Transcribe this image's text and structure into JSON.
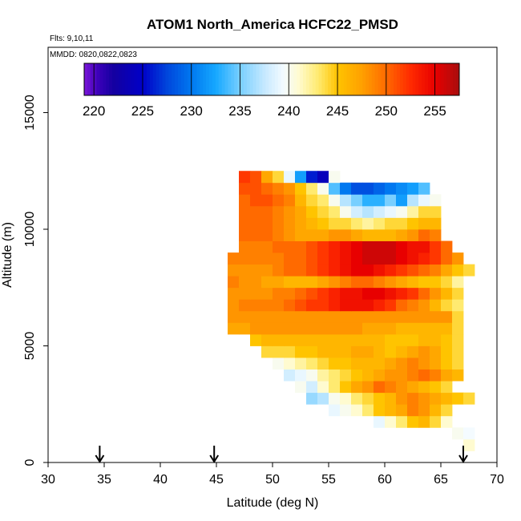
{
  "chart_data": {
    "type": "heatmap",
    "title": "ATOM1 North_America HCFC22_PMSD",
    "subtitle_flights": "Flts: 9,10,11",
    "subtitle_dates": "MMDD: 0820,0822,0823",
    "xlabel": "Latitude (deg N)",
    "ylabel": "Altitude (m)",
    "xlim": [
      30,
      70
    ],
    "ylim": [
      0,
      17800
    ],
    "x_ticks": [
      "30",
      "35",
      "40",
      "45",
      "50",
      "55",
      "60",
      "65",
      "70"
    ],
    "y_ticks": [
      "0",
      "5000",
      "10000",
      "15000"
    ],
    "colorbar": {
      "range": [
        219,
        257.5
      ],
      "ticks": [
        "220",
        "225",
        "230",
        "235",
        "240",
        "245",
        "250",
        "255"
      ],
      "stops": [
        {
          "v": 219.0,
          "c": "#7b16d8"
        },
        {
          "v": 220.5,
          "c": "#3a00b8"
        },
        {
          "v": 222.0,
          "c": "#1400a0"
        },
        {
          "v": 225.0,
          "c": "#0000c8"
        },
        {
          "v": 227.5,
          "c": "#0046dc"
        },
        {
          "v": 230.0,
          "c": "#0078f0"
        },
        {
          "v": 232.5,
          "c": "#16a8ff"
        },
        {
          "v": 235.0,
          "c": "#78cfff"
        },
        {
          "v": 237.5,
          "c": "#c6e9ff"
        },
        {
          "v": 239.5,
          "c": "#f4fbff"
        },
        {
          "v": 241.0,
          "c": "#fffbd0"
        },
        {
          "v": 243.0,
          "c": "#ffea70"
        },
        {
          "v": 245.0,
          "c": "#ffc400"
        },
        {
          "v": 247.5,
          "c": "#ffa000"
        },
        {
          "v": 250.0,
          "c": "#ff6a00"
        },
        {
          "v": 252.5,
          "c": "#ff2a00"
        },
        {
          "v": 255.0,
          "c": "#e80000"
        },
        {
          "v": 257.5,
          "c": "#a80e0e"
        }
      ]
    },
    "flight_arrows_lat": [
      34.6,
      44.8,
      67.0
    ],
    "grid_origin_lat": 45,
    "grid_lat_step": 1,
    "grid_origin_alt": 0,
    "grid_alt_step": 500,
    "rows": [
      {
        "r": 1,
        "c0": 67,
        "v": [
          241
        ]
      },
      {
        "r": 2,
        "c0": 66,
        "v": [
          240,
          239.5
        ]
      },
      {
        "r": 3,
        "c0": 59,
        "v": [
          239,
          241,
          243,
          245,
          246,
          244,
          241
        ]
      },
      {
        "r": 4,
        "c0": 55,
        "v": [
          239,
          240,
          241,
          243,
          245,
          246,
          247,
          249,
          248,
          246,
          244
        ]
      },
      {
        "r": 5,
        "c0": 53,
        "v": [
          236,
          237,
          240,
          241,
          243,
          244,
          245,
          246,
          248,
          249,
          248,
          247,
          246,
          245,
          244
        ]
      },
      {
        "r": 6,
        "c0": 52,
        "v": [
          240,
          238,
          241,
          243,
          245,
          247,
          248,
          250,
          249,
          248,
          247,
          246,
          245,
          244
        ]
      },
      {
        "r": 7,
        "c0": 51,
        "v": [
          238,
          239,
          240,
          242,
          243,
          244,
          245,
          246,
          247,
          248,
          248,
          249,
          250,
          249,
          247,
          246
        ]
      },
      {
        "r": 8,
        "c0": 50,
        "v": [
          240,
          241,
          242,
          243,
          244,
          245,
          245,
          246,
          246,
          246,
          247,
          248,
          249,
          248,
          247,
          245,
          244
        ]
      },
      {
        "r": 9,
        "c0": 49,
        "v": [
          244,
          244,
          244,
          245,
          245,
          246,
          246,
          246,
          247,
          247,
          246,
          245,
          246,
          247,
          248,
          247,
          245,
          244
        ]
      },
      {
        "r": 10,
        "c0": 48,
        "v": [
          245,
          246,
          246,
          246,
          246,
          246,
          246,
          246,
          246,
          246,
          246,
          246,
          245,
          245,
          245,
          246,
          246,
          245,
          244
        ]
      },
      {
        "r": 11,
        "c0": 46,
        "v": [
          247,
          247,
          248,
          248,
          248,
          248,
          248,
          248,
          248,
          248,
          248,
          248,
          247,
          247,
          247,
          246,
          246,
          246,
          246,
          246,
          244
        ]
      },
      {
        "r": 12,
        "c0": 46,
        "v": [
          248,
          248,
          248,
          248,
          248,
          248,
          248,
          248,
          248,
          248,
          248,
          248,
          248,
          248,
          248,
          248,
          248,
          248,
          248,
          248,
          244
        ]
      },
      {
        "r": 13,
        "c0": 46,
        "v": [
          248,
          249,
          249,
          249,
          249,
          250,
          251,
          252,
          252,
          253,
          254,
          254,
          254,
          253,
          252,
          250,
          249,
          248,
          246,
          244,
          243
        ]
      },
      {
        "r": 14,
        "c0": 46,
        "v": [
          248,
          248,
          248,
          248,
          249,
          249,
          250,
          251,
          252,
          253,
          254,
          254,
          255,
          255,
          254,
          253,
          252,
          250,
          248,
          246,
          244
        ]
      },
      {
        "r": 15,
        "c0": 46,
        "v": [
          249,
          248,
          248,
          247,
          247,
          246,
          246,
          246,
          247,
          248,
          249,
          250,
          250,
          249,
          248,
          247,
          246,
          245,
          245,
          244,
          242
        ]
      },
      {
        "r": 16,
        "c0": 46,
        "v": [
          248,
          248,
          248,
          248,
          249,
          250,
          250,
          251,
          252,
          253,
          254,
          255,
          255,
          254,
          253,
          252,
          251,
          250,
          249,
          247,
          245,
          244
        ]
      },
      {
        "r": 17,
        "c0": 46,
        "v": [
          249,
          249,
          249,
          249,
          249,
          250,
          250,
          251,
          252,
          253,
          254,
          255,
          256,
          256,
          256,
          255,
          254,
          253,
          252,
          250,
          248
        ]
      },
      {
        "r": 18,
        "c0": 47,
        "v": [
          249,
          249,
          249,
          250,
          250,
          250,
          251,
          252,
          253,
          254,
          255,
          256,
          256,
          256,
          255,
          254,
          254,
          252,
          250
        ]
      },
      {
        "r": 19,
        "c0": 47,
        "v": [
          250,
          250,
          250,
          249,
          248,
          247,
          247,
          247,
          248,
          248,
          247,
          246,
          246,
          246,
          247,
          248,
          250,
          249
        ]
      },
      {
        "r": 20,
        "c0": 47,
        "v": [
          250,
          250,
          250,
          249,
          248,
          247,
          246,
          245,
          244,
          244,
          243,
          242,
          243,
          244,
          244,
          245,
          246,
          246
        ]
      },
      {
        "r": 21,
        "c0": 47,
        "v": [
          250,
          250,
          250,
          249,
          248,
          247,
          245,
          244,
          243,
          240,
          238,
          237,
          238,
          239,
          240,
          242,
          244,
          244
        ]
      },
      {
        "r": 22,
        "c0": 47,
        "v": [
          250,
          251,
          251,
          250,
          249,
          246,
          244,
          243,
          240,
          237,
          235,
          233,
          233,
          235,
          232,
          237,
          239,
          240
        ]
      },
      {
        "r": 23,
        "c0": 47,
        "v": [
          251,
          251,
          250,
          249,
          248,
          245,
          243,
          240,
          234,
          230,
          228,
          228,
          229,
          230,
          231,
          232,
          234
        ]
      },
      {
        "r": 24,
        "c0": 47,
        "v": [
          252,
          251,
          247,
          244,
          239,
          232,
          226,
          224,
          240
        ]
      }
    ]
  }
}
